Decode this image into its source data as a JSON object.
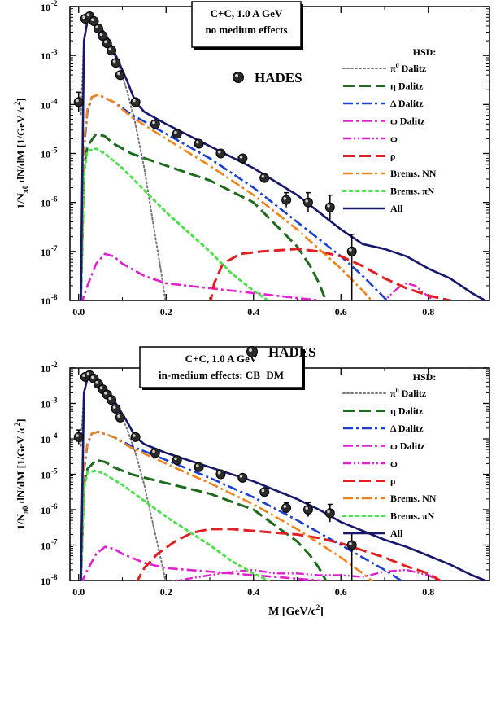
{
  "chart_data": [
    {
      "type": "line",
      "panel": "top",
      "title_lines": [
        "C+C,  1.0 A GeV",
        "no medium effects"
      ],
      "ylabel": "1/N_π0 dN/dM  [1/GeV /c^2]",
      "xlabel": "",
      "xlim": [
        -0.02,
        0.94
      ],
      "ylim_log10": [
        -8,
        -2
      ],
      "scale": "log",
      "xticks": [
        "0.0",
        "0.2",
        "0.4",
        "0.6",
        "0.8"
      ],
      "xtick_values": [
        0.0,
        0.2,
        0.4,
        0.6,
        0.8
      ],
      "ytick_exponents": [
        -8,
        -7,
        -6,
        -5,
        -4,
        -3,
        -2
      ],
      "legend_header": "HSD:",
      "data_label": "HADES",
      "series": [
        {
          "name": "π0 Dalitz",
          "color": "#777777",
          "style": "dot",
          "x": [
            0.005,
            0.012,
            0.02,
            0.03,
            0.05,
            0.07,
            0.09,
            0.11,
            0.13,
            0.15,
            0.17,
            0.19,
            0.2
          ],
          "y": [
            -4.2,
            -2.7,
            -2.3,
            -2.25,
            -2.45,
            -2.75,
            -3.15,
            -3.7,
            -4.4,
            -5.3,
            -6.4,
            -7.5,
            -8.1
          ]
        },
        {
          "name": "η Dalitz",
          "color": "#1e6b1e",
          "style": "dash",
          "x": [
            0.005,
            0.012,
            0.02,
            0.04,
            0.06,
            0.08,
            0.12,
            0.2,
            0.3,
            0.4,
            0.5,
            0.53,
            0.55,
            0.57
          ],
          "y": [
            -8.1,
            -5.3,
            -4.85,
            -4.6,
            -4.65,
            -4.8,
            -5.0,
            -5.25,
            -5.55,
            -6.0,
            -6.9,
            -7.3,
            -7.65,
            -8.1
          ]
        },
        {
          "name": "Δ Dalitz",
          "color": "#1a3fd1",
          "style": "dashdot",
          "x": [
            0.005,
            0.012,
            0.02,
            0.03,
            0.045,
            0.08,
            0.12,
            0.2,
            0.3,
            0.4,
            0.5,
            0.6,
            0.65,
            0.7,
            0.72
          ],
          "y": [
            -8.1,
            -4.9,
            -4.15,
            -3.85,
            -3.8,
            -3.95,
            -4.2,
            -4.6,
            -5.1,
            -5.7,
            -6.4,
            -7.1,
            -7.5,
            -7.95,
            -8.1
          ]
        },
        {
          "name": "ω Dalitz",
          "color": "#e020d0",
          "style": "dashdot",
          "x": [
            0.005,
            0.02,
            0.04,
            0.06,
            0.08,
            0.1,
            0.15,
            0.2,
            0.3,
            0.4,
            0.5,
            0.55,
            0.58
          ],
          "y": [
            -8.1,
            -7.7,
            -7.25,
            -7.05,
            -7.1,
            -7.25,
            -7.5,
            -7.65,
            -7.75,
            -7.85,
            -7.95,
            -8.0,
            -8.1
          ]
        },
        {
          "name": "ω",
          "color": "#e020d0",
          "style": "dashdotdot",
          "x": [
            0.6,
            0.65,
            0.7,
            0.73,
            0.75,
            0.77,
            0.79,
            0.82,
            0.85
          ],
          "y": [
            -8.1,
            -8.1,
            -8.0,
            -7.75,
            -7.65,
            -7.7,
            -7.85,
            -8.05,
            -8.1
          ]
        },
        {
          "name": "ρ",
          "color": "#e02020",
          "style": "dash",
          "x": [
            0.3,
            0.31,
            0.33,
            0.37,
            0.42,
            0.5,
            0.55,
            0.6,
            0.65,
            0.7,
            0.75,
            0.8,
            0.85,
            0.9
          ],
          "y": [
            -8.1,
            -7.65,
            -7.25,
            -7.05,
            -7.0,
            -6.95,
            -7.0,
            -7.1,
            -7.3,
            -7.55,
            -7.75,
            -7.9,
            -8.0,
            -8.1
          ]
        },
        {
          "name": "Brems. NN",
          "color": "#f0841a",
          "style": "dashdot",
          "x": [
            0.005,
            0.012,
            0.02,
            0.03,
            0.045,
            0.08,
            0.12,
            0.2,
            0.3,
            0.4,
            0.5,
            0.6,
            0.65,
            0.68
          ],
          "y": [
            -8.1,
            -4.8,
            -4.1,
            -3.85,
            -3.8,
            -3.95,
            -4.25,
            -4.7,
            -5.25,
            -5.85,
            -6.55,
            -7.35,
            -7.8,
            -8.1
          ]
        },
        {
          "name": "Brems. πN",
          "color": "#4fe04f",
          "style": "dotted",
          "x": [
            0.005,
            0.012,
            0.02,
            0.04,
            0.06,
            0.1,
            0.15,
            0.2,
            0.3,
            0.35,
            0.4,
            0.45
          ],
          "y": [
            -8.1,
            -5.4,
            -4.95,
            -4.9,
            -5.0,
            -5.3,
            -5.75,
            -6.2,
            -7.0,
            -7.45,
            -7.8,
            -8.1
          ]
        },
        {
          "name": "All",
          "color": "#16166a",
          "style": "solid",
          "x": [
            0.005,
            0.012,
            0.02,
            0.03,
            0.05,
            0.07,
            0.09,
            0.11,
            0.13,
            0.15,
            0.2,
            0.3,
            0.4,
            0.5,
            0.55,
            0.6,
            0.65,
            0.7,
            0.75,
            0.8,
            0.85,
            0.9,
            0.93
          ],
          "y": [
            -8.0,
            -2.7,
            -2.3,
            -2.22,
            -2.42,
            -2.7,
            -3.1,
            -3.5,
            -3.95,
            -4.15,
            -4.4,
            -4.85,
            -5.3,
            -5.85,
            -6.2,
            -6.55,
            -6.85,
            -6.95,
            -7.1,
            -7.35,
            -7.55,
            -7.85,
            -8.0
          ]
        }
      ],
      "hades_points": {
        "x": [
          0.0,
          0.015,
          0.025,
          0.035,
          0.045,
          0.055,
          0.065,
          0.075,
          0.085,
          0.095,
          0.13,
          0.175,
          0.225,
          0.275,
          0.325,
          0.375,
          0.425,
          0.475,
          0.525,
          0.575,
          0.625
        ],
        "y": [
          -3.95,
          -2.25,
          -2.2,
          -2.3,
          -2.45,
          -2.6,
          -2.75,
          -2.9,
          -3.15,
          -3.4,
          -3.95,
          -4.4,
          -4.6,
          -4.8,
          -5.0,
          -5.1,
          -5.5,
          -5.95,
          -6.0,
          -6.1,
          -7.0
        ],
        "err": [
          0.2,
          0,
          0,
          0,
          0,
          0,
          0,
          0,
          0,
          0,
          0,
          0,
          0,
          0,
          0,
          0,
          0,
          0.15,
          0.2,
          0.25,
          0.35
        ]
      }
    },
    {
      "type": "line",
      "panel": "bottom",
      "title_lines": [
        "C+C,  1.0 A GeV",
        "in-medium effects: CB+DM"
      ],
      "ylabel": "1/N_π0 dN/dM  [1/GeV /c^2]",
      "xlabel": "M [GeV/c^2]",
      "xlim": [
        -0.02,
        0.94
      ],
      "ylim_log10": [
        -8,
        -2
      ],
      "scale": "log",
      "xticks": [
        "0.0",
        "0.2",
        "0.4",
        "0.6",
        "0.8"
      ],
      "xtick_values": [
        0.0,
        0.2,
        0.4,
        0.6,
        0.8
      ],
      "ytick_exponents": [
        -8,
        -7,
        -6,
        -5,
        -4,
        -3,
        -2
      ],
      "legend_header": "HSD:",
      "data_label": "HADES",
      "series": [
        {
          "name": "π0 Dalitz",
          "color": "#777777",
          "style": "dot",
          "x": [
            0.005,
            0.012,
            0.02,
            0.03,
            0.05,
            0.07,
            0.09,
            0.11,
            0.13,
            0.15,
            0.17,
            0.19,
            0.2
          ],
          "y": [
            -4.2,
            -2.7,
            -2.3,
            -2.25,
            -2.45,
            -2.75,
            -3.15,
            -3.7,
            -4.4,
            -5.3,
            -6.4,
            -7.5,
            -8.1
          ]
        },
        {
          "name": "η Dalitz",
          "color": "#1e6b1e",
          "style": "dash",
          "x": [
            0.005,
            0.012,
            0.02,
            0.04,
            0.06,
            0.08,
            0.12,
            0.2,
            0.3,
            0.4,
            0.5,
            0.53,
            0.55,
            0.57
          ],
          "y": [
            -8.1,
            -5.3,
            -4.85,
            -4.6,
            -4.65,
            -4.8,
            -5.0,
            -5.25,
            -5.55,
            -6.0,
            -6.9,
            -7.3,
            -7.65,
            -8.1
          ]
        },
        {
          "name": "Δ Dalitz",
          "color": "#1a3fd1",
          "style": "dashdot",
          "x": [
            0.005,
            0.012,
            0.02,
            0.03,
            0.045,
            0.08,
            0.12,
            0.2,
            0.3,
            0.4,
            0.5,
            0.6,
            0.65,
            0.7,
            0.75
          ],
          "y": [
            -8.1,
            -4.9,
            -4.15,
            -3.85,
            -3.8,
            -3.95,
            -4.2,
            -4.6,
            -5.1,
            -5.65,
            -6.3,
            -7.0,
            -7.35,
            -7.7,
            -8.1
          ]
        },
        {
          "name": "ω Dalitz",
          "color": "#e020d0",
          "style": "dashdot",
          "x": [
            0.005,
            0.02,
            0.04,
            0.06,
            0.08,
            0.1,
            0.15,
            0.2,
            0.3,
            0.4,
            0.5,
            0.55,
            0.58
          ],
          "y": [
            -8.1,
            -7.7,
            -7.25,
            -7.05,
            -7.1,
            -7.25,
            -7.5,
            -7.65,
            -7.75,
            -7.85,
            -7.95,
            -8.0,
            -8.1
          ]
        },
        {
          "name": "ω",
          "color": "#e020d0",
          "style": "dashdotdot",
          "x": [
            0.2,
            0.3,
            0.35,
            0.4,
            0.45,
            0.5,
            0.55,
            0.6,
            0.65,
            0.7,
            0.75,
            0.8,
            0.84
          ],
          "y": [
            -8.05,
            -7.85,
            -7.75,
            -7.7,
            -7.8,
            -7.8,
            -7.85,
            -7.85,
            -7.9,
            -7.75,
            -7.7,
            -7.85,
            -8.1
          ]
        },
        {
          "name": "ρ",
          "color": "#e02020",
          "style": "dash",
          "x": [
            0.13,
            0.15,
            0.18,
            0.22,
            0.26,
            0.3,
            0.35,
            0.4,
            0.45,
            0.5,
            0.55,
            0.6,
            0.65,
            0.7,
            0.75,
            0.8,
            0.84
          ],
          "y": [
            -8.1,
            -7.65,
            -7.25,
            -6.9,
            -6.65,
            -6.55,
            -6.55,
            -6.6,
            -6.65,
            -6.7,
            -6.8,
            -6.95,
            -7.15,
            -7.35,
            -7.6,
            -7.8,
            -8.1
          ]
        },
        {
          "name": "Brems. NN",
          "color": "#f0841a",
          "style": "dashdot",
          "x": [
            0.005,
            0.012,
            0.02,
            0.03,
            0.045,
            0.08,
            0.12,
            0.2,
            0.3,
            0.4,
            0.5,
            0.6,
            0.65,
            0.68
          ],
          "y": [
            -8.1,
            -4.8,
            -4.1,
            -3.85,
            -3.8,
            -3.95,
            -4.25,
            -4.7,
            -5.25,
            -5.85,
            -6.55,
            -7.35,
            -7.8,
            -8.1
          ]
        },
        {
          "name": "Brems. πN",
          "color": "#4fe04f",
          "style": "dotted",
          "x": [
            0.005,
            0.012,
            0.02,
            0.04,
            0.06,
            0.1,
            0.15,
            0.2,
            0.3,
            0.35,
            0.4,
            0.45
          ],
          "y": [
            -8.1,
            -5.4,
            -4.95,
            -4.9,
            -5.0,
            -5.3,
            -5.75,
            -6.2,
            -7.0,
            -7.45,
            -7.8,
            -8.1
          ]
        },
        {
          "name": "All",
          "color": "#16166a",
          "style": "solid",
          "x": [
            0.005,
            0.012,
            0.02,
            0.03,
            0.05,
            0.07,
            0.09,
            0.11,
            0.13,
            0.15,
            0.2,
            0.3,
            0.4,
            0.5,
            0.55,
            0.6,
            0.65,
            0.7,
            0.75,
            0.8,
            0.85,
            0.9,
            0.93
          ],
          "y": [
            -8.0,
            -2.7,
            -2.3,
            -2.22,
            -2.42,
            -2.7,
            -3.1,
            -3.5,
            -3.95,
            -4.15,
            -4.4,
            -4.8,
            -5.2,
            -5.7,
            -6.0,
            -6.35,
            -6.6,
            -6.85,
            -7.05,
            -7.3,
            -7.55,
            -7.85,
            -8.0
          ]
        }
      ],
      "hades_points": {
        "x": [
          0.0,
          0.015,
          0.025,
          0.035,
          0.045,
          0.055,
          0.065,
          0.075,
          0.085,
          0.095,
          0.13,
          0.175,
          0.225,
          0.275,
          0.325,
          0.375,
          0.425,
          0.475,
          0.525,
          0.575,
          0.625
        ],
        "y": [
          -3.95,
          -2.25,
          -2.2,
          -2.3,
          -2.45,
          -2.6,
          -2.75,
          -2.9,
          -3.15,
          -3.4,
          -3.95,
          -4.4,
          -4.6,
          -4.8,
          -5.0,
          -5.1,
          -5.5,
          -5.95,
          -6.0,
          -6.1,
          -7.0
        ],
        "err": [
          0.2,
          0,
          0,
          0,
          0,
          0,
          0,
          0,
          0,
          0,
          0,
          0,
          0,
          0,
          0,
          0,
          0,
          0.15,
          0.2,
          0.25,
          0.35
        ]
      }
    }
  ]
}
